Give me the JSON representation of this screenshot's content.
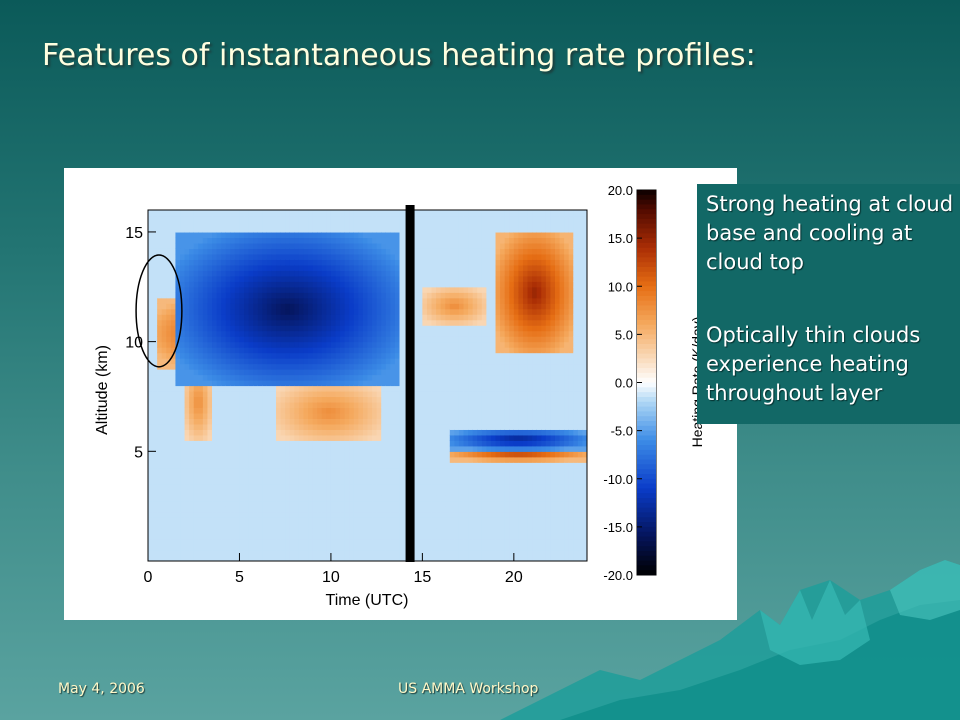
{
  "slide": {
    "title": "Features of instantaneous heating rate profiles:",
    "callouts": [
      "Strong heating at cloud base and cooling at cloud top",
      "Optically thin clouds experience heating throughout layer"
    ],
    "footer_left": "May 4, 2006",
    "footer_center": "US AMMA Workshop"
  },
  "colors": {
    "background_top": "#0b5a59",
    "background_bottom": "#5aa3a0",
    "title_text": "#ffffe0",
    "callout_bg": "#126866",
    "footer_text": "#fff8c8"
  },
  "chart_data": {
    "type": "heatmap",
    "xlabel": "Time (UTC)",
    "ylabel": "Altitude (km)",
    "colorbar_label": "Heating Rate (K/day)",
    "xlim": [
      0,
      24
    ],
    "ylim": [
      0,
      16
    ],
    "xticks": [
      0,
      5,
      10,
      15,
      20
    ],
    "xtick_labels": [
      "0",
      "5",
      "10",
      "15",
      "20"
    ],
    "yticks": [
      5,
      10,
      15
    ],
    "ytick_labels": [
      "5",
      "10",
      "15"
    ],
    "colorbar_range": [
      -20,
      20
    ],
    "colorbar_ticks": [
      20,
      15,
      10,
      5,
      0,
      -5,
      -10,
      -15,
      -20
    ],
    "colorbar_tick_labels": [
      "20.0",
      "15.0",
      "10.0",
      "5.0",
      "0.0",
      "-5.0",
      "-10.0",
      "-15.0",
      "-20.0"
    ],
    "data_gap_time": 14.3,
    "annotation": {
      "shape": "ellipse",
      "center": [
        0.6,
        11.4
      ],
      "radius_x": 1.25,
      "radius_y": 2.55
    },
    "features": [
      {
        "description": "heating band at cloud base",
        "time_start": 0.5,
        "time_end": 8,
        "alt_start": 8.8,
        "alt_end": 12,
        "heating_rate": 14
      },
      {
        "description": "heating streak",
        "time_start": 2,
        "time_end": 3.5,
        "alt_start": 5.5,
        "alt_end": 9,
        "heating_rate": 8
      },
      {
        "description": "heating streaks",
        "time_start": 7,
        "time_end": 12.8,
        "alt_start": 5.4,
        "alt_end": 8.2,
        "heating_rate": 8
      },
      {
        "description": "cooling at cloud top",
        "time_start": 1.5,
        "time_end": 13.8,
        "alt_start": 8,
        "alt_end": 15,
        "heating_rate": -16
      },
      {
        "description": "heating near 12 km",
        "time_start": 15,
        "time_end": 18.5,
        "alt_start": 10.8,
        "alt_end": 12.5,
        "heating_rate": 8
      },
      {
        "description": "heating near 5 km",
        "time_start": 16.5,
        "time_end": 24,
        "alt_start": 4.6,
        "alt_end": 5.4,
        "heating_rate": 14
      },
      {
        "description": "cooling near 5.5 km",
        "time_start": 16.5,
        "time_end": 24,
        "alt_start": 5.1,
        "alt_end": 6,
        "heating_rate": -14
      },
      {
        "description": "heating near cloud top",
        "time_start": 19,
        "time_end": 23.3,
        "alt_start": 9.5,
        "alt_end": 15,
        "heating_rate": 15
      },
      {
        "description": "weak cooling layer",
        "time_start": 0,
        "time_end": 24,
        "alt_start": 0,
        "alt_end": 16,
        "heating_rate": -3
      }
    ]
  }
}
